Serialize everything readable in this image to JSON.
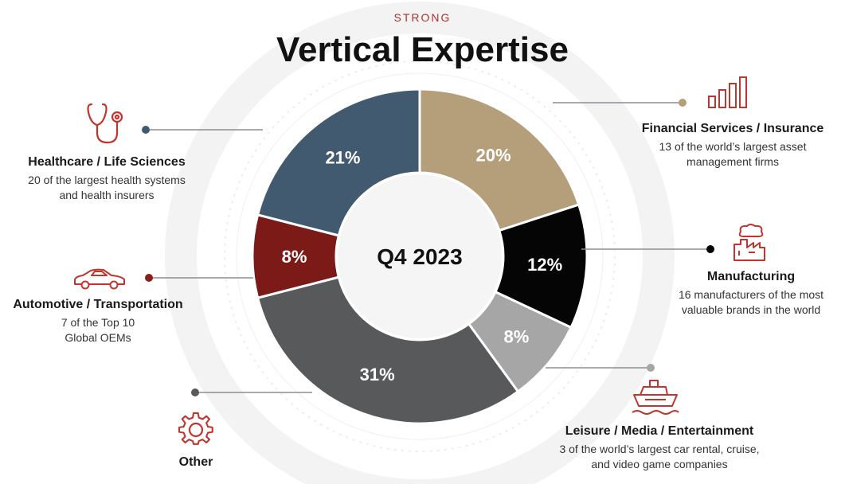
{
  "header": {
    "kicker": "STRONG",
    "title": "Vertical Expertise"
  },
  "chart_data": {
    "type": "pie",
    "center_label": "Q4 2023",
    "slices": [
      {
        "key": "financial",
        "value": 20,
        "label": "20%",
        "color": "#b59f7b"
      },
      {
        "key": "manufacturing",
        "value": 12,
        "label": "12%",
        "color": "#050505"
      },
      {
        "key": "leisure",
        "value": 8,
        "label": "8%",
        "color": "#a6a6a6"
      },
      {
        "key": "other",
        "value": 31,
        "label": "31%",
        "color": "#58595b"
      },
      {
        "key": "automotive",
        "value": 8,
        "label": "8%",
        "color": "#7b1a17"
      },
      {
        "key": "healthcare",
        "value": 21,
        "label": "21%",
        "color": "#425a6f"
      }
    ]
  },
  "segments": {
    "healthcare": {
      "name": "Healthcare / Life Sciences",
      "desc": [
        "20 of the largest health systems",
        "and health insurers"
      ],
      "icon": "stethoscope-icon"
    },
    "automotive": {
      "name": "Automotive / Transportation",
      "desc": [
        "7 of the Top 10",
        "Global OEMs"
      ],
      "icon": "car-icon"
    },
    "other": {
      "name": "Other",
      "icon": "gear-icon"
    },
    "financial": {
      "name": "Financial Services / Insurance",
      "desc": [
        "13 of the world’s largest asset",
        "management firms"
      ],
      "icon": "bar-chart-icon"
    },
    "manufacturing": {
      "name": "Manufacturing",
      "desc": [
        "16 manufacturers of the most",
        "valuable brands in the world"
      ],
      "icon": "factory-icon"
    },
    "leisure": {
      "name": "Leisure / Media / Entertainment",
      "desc": [
        "3 of the world’s largest car rental, cruise,",
        "and video game companies"
      ],
      "icon": "ship-icon"
    }
  },
  "colors": {
    "accent": "#b0322f",
    "connector_healthcare": "#425a6f",
    "connector_automotive": "#7b1a17"
  }
}
